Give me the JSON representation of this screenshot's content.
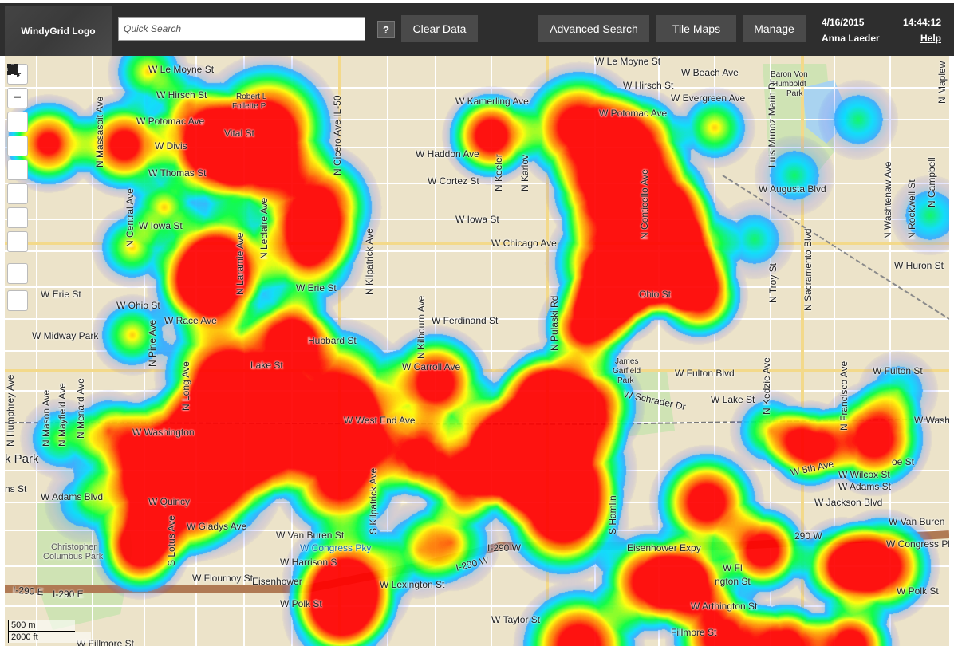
{
  "header": {
    "logo_text": "WindyGrid Logo",
    "search_placeholder": "Quick Search",
    "help_button": "?",
    "clear_button": "Clear Data",
    "advanced_search": "Advanced Search",
    "tile_maps": "Tile Maps",
    "manage": "Manage",
    "date": "4/16/2015",
    "time": "14:44:12",
    "user": "Anna Laeder",
    "help_link": "Help"
  },
  "map_tools": {
    "zoom_in": "+",
    "zoom_out": "−"
  },
  "scale": {
    "meters": "500 m",
    "feet": "2000 ft"
  },
  "street_labels": {
    "le_moyne_1": "W Le Moyne St",
    "le_moyne_2": "W Le Moyne St",
    "hirsch_1": "W Hirsch St",
    "hirsch_2": "W Hirsch St",
    "beach": "W Beach Ave",
    "baron_von": "Baron Von",
    "humboldt": "Humboldt",
    "park": "Park",
    "robert_l": "Robert L",
    "follette": "Follette P",
    "kamerling": "W Kamerling Ave",
    "evergreen": "W Evergreen Ave",
    "potomac_1": "W Potomac Ave",
    "potomac_2": "W Potomac Ave",
    "division": "W Divis",
    "vital": "Vital St",
    "haddon": "W Haddon Ave",
    "thomas": "W Thomas St",
    "cortez": "W Cortez St",
    "augusta": "W Augusta Blvd",
    "iowa_1": "W Iowa St",
    "iowa_2": "W Iowa St",
    "chicago": "W Chicago Ave",
    "huron": "W Huron St",
    "erie_1": "W Erie St",
    "erie_2": "W Erie St",
    "ohio_1": "W Ohio St",
    "ohio_2": "Ohio St",
    "race": "W Race Ave",
    "midway": "W Midway Park",
    "ferdinand": "W Ferdinand St",
    "hubbard": "Hubbard St",
    "james": "James",
    "garfield": "Garfield",
    "park2": "Park",
    "lake_1": "Lake St",
    "carroll": "W Carroll Ave",
    "fulton_1": "W Fulton Blvd",
    "fulton_2": "W Fulton St",
    "schrader": "W Schrader Dr",
    "lake_2": "W Lake St",
    "west_end": "W West End Ave",
    "washington": "W Washington",
    "wash_right": "W Wash",
    "k_park": "k Park",
    "adams_1": "W Adams Blvd",
    "adams_2": "W Adams St",
    "wilcox": "W Wilcox St",
    "monroe": "oe St",
    "fifth": "W 5th Ave",
    "jackson": "W Jackson Blvd",
    "quincy": "W Quincy",
    "ns_st": "ns St",
    "gladys": "W Gladys Ave",
    "van_buren_1": "W Van Buren St",
    "van_buren_2": "W Van Buren",
    "congress_1": "W Congress Pky",
    "congress_2": "W Congress Pk",
    "christopher": "Christopher",
    "columbus_park": "Columbus Park",
    "i290_1": "I-290 W",
    "i290_2": "I-290 W",
    "i290_3": "I-290 E",
    "i290_4": "I-290 E",
    "i290_5": "290 W",
    "eisenhower_1": "Eisenhower Expy",
    "eisenhower_2": "Eisenhower",
    "harrison": "W Harrison S",
    "flournoy_1": "W Flournoy St",
    "flournoy_2": "W Fl",
    "lexington_1": "W Lexington St",
    "lexington_2": "ngton St",
    "polk_1": "W Polk St",
    "polk_2": "W Polk St",
    "taylor": "W Taylor St",
    "arthington": "W Arthington St",
    "fillmore_1": "W Fillmore St",
    "fillmore_2": "Fillmore St",
    "n_menard": "N Menard Ave",
    "n_central": "N Central Ave",
    "n_laramie": "N Laramie Ave",
    "n_leclaire": "N Leclaire Ave",
    "cicero": "N Cicero Ave IL-50",
    "n_kilpatrick": "N Kilpatrick Ave",
    "n_kilbourn": "N Kilbourn Ave",
    "n_pulaski": "N Pulaski Rd",
    "n_keeler": "N Keeler",
    "n_karlov": "N Karlov",
    "n_sacramento": "N Sacramento Blvd",
    "n_troy": "N Troy St",
    "n_kedzie": "N Kedzie Ave",
    "n_francisco": "N Francisco Ave",
    "n_washtenaw": "N Washtenaw Ave",
    "n_rockwell": "N Rockwell St",
    "n_campbell": "N Campbell",
    "n_maplewood": "N Maplew",
    "n_humphrey": "N Humphrey Ave",
    "n_mason": "N Mason Ave",
    "n_mayfield": "N Mayfield Ave",
    "n_menard_2": "N Menard Ave",
    "n_long": "N Long Ave",
    "n_pine": "N Pine Ave",
    "s_lotus": "S Lotus Ave",
    "s_hamlin": "S Hamlin",
    "s_kilpatrick": "S Kilpatrick Ave",
    "n_massasoit": "N Massasoit Ave",
    "luis_munoz": "Luis Munoz Marin Dr",
    "conticello": "N Conticello Ave"
  },
  "colors": {
    "topbar": "#2e2e2e",
    "map_bg": "#ece3c9",
    "heat_hot": "#ff0000",
    "heat_cool": "#7d7dff"
  }
}
